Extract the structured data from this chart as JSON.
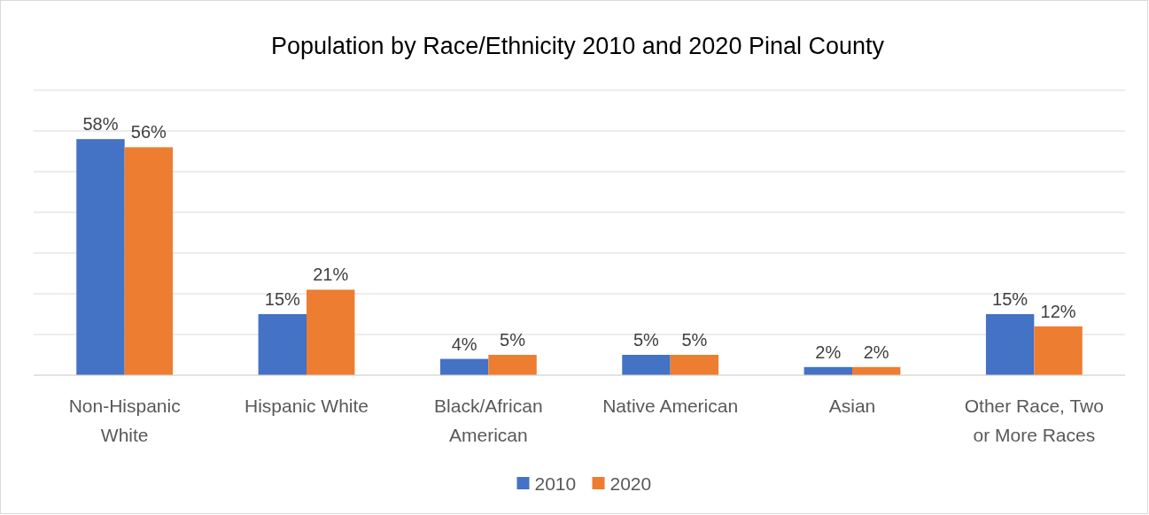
{
  "chart_data": {
    "type": "bar",
    "title": "Population by Race/Ethnicity 2010 and 2020 Pinal County",
    "categories": [
      "Non-Hispanic White",
      "Hispanic White",
      "Black/African American",
      "Native American",
      "Asian",
      "Other Race, Two or More Races"
    ],
    "series": [
      {
        "name": "2010",
        "color": "#4472c4",
        "values": [
          58,
          15,
          4,
          5,
          2,
          15
        ],
        "value_labels": [
          "58%",
          "15%",
          "4%",
          "5%",
          "2%",
          "15%"
        ]
      },
      {
        "name": "2020",
        "color": "#ed7d31",
        "values": [
          56,
          21,
          5,
          5,
          2,
          12
        ],
        "value_labels": [
          "56%",
          "21%",
          "5%",
          "5%",
          "2%",
          "12%"
        ]
      }
    ],
    "ylim": [
      0,
      70
    ],
    "yticks": [
      {
        "value": 0,
        "label": null
      },
      {
        "value": 10,
        "label": null
      },
      {
        "value": 20,
        "label": null
      },
      {
        "value": 30,
        "label": null
      },
      {
        "value": 40,
        "label": null
      },
      {
        "value": 50,
        "label": null
      },
      {
        "value": 60,
        "label": null
      },
      {
        "value": 70,
        "label": null
      }
    ],
    "tick_labels": "x",
    "grid": "y",
    "legend": "bottom"
  }
}
